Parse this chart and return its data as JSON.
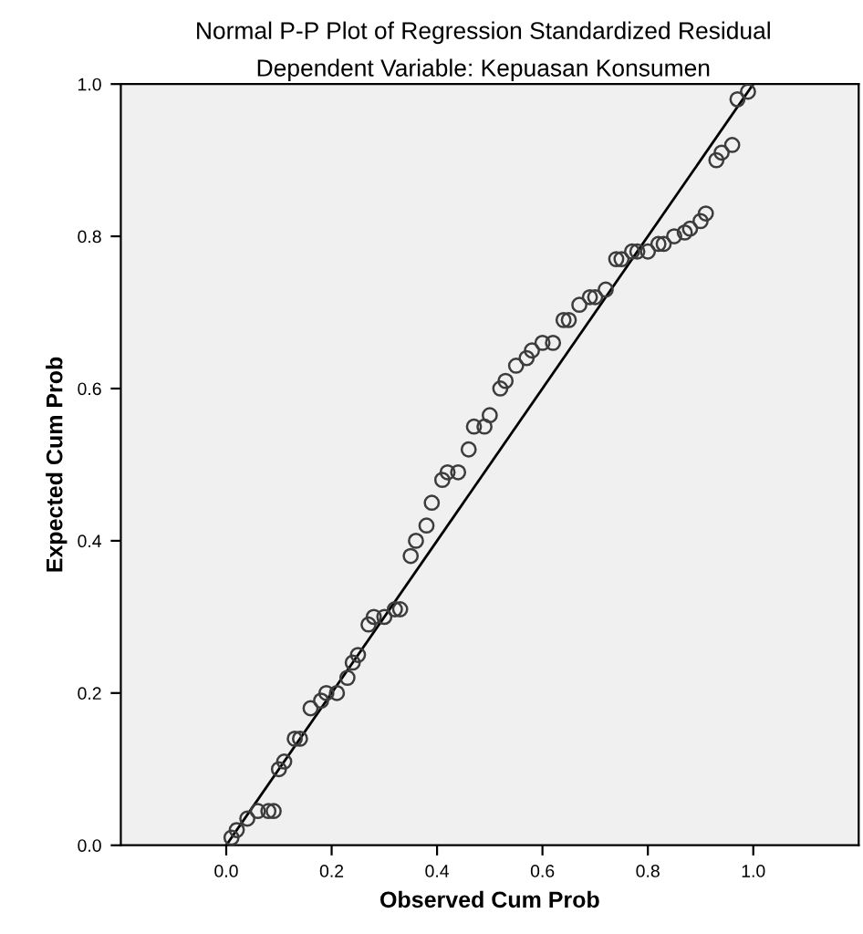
{
  "chart_data": {
    "type": "scatter",
    "title": "Normal P-P Plot of Regression Standardized Residual",
    "subtitle": "Dependent Variable: Kepuasan Konsumen",
    "xlabel": "Observed Cum Prob",
    "ylabel": "Expected Cum Prob",
    "xlim": [
      -0.2,
      1.2
    ],
    "ylim": [
      0,
      1
    ],
    "xticks": [
      {
        "value": 0,
        "label": "0.0"
      },
      {
        "value": 0.2,
        "label": "0.2"
      },
      {
        "value": 0.4,
        "label": "0.4"
      },
      {
        "value": 0.6,
        "label": "0.6"
      },
      {
        "value": 0.8,
        "label": "0.8"
      },
      {
        "value": 1,
        "label": "1.0"
      }
    ],
    "yticks": [
      {
        "value": 0,
        "label": "0.0"
      },
      {
        "value": 0.2,
        "label": "0.2"
      },
      {
        "value": 0.4,
        "label": "0.4"
      },
      {
        "value": 0.6,
        "label": "0.6"
      },
      {
        "value": 0.8,
        "label": "0.8"
      },
      {
        "value": 1,
        "label": "1.0"
      }
    ],
    "grid": false,
    "legend": false,
    "series": [
      {
        "marker": "circle",
        "color": "#3c3c3c",
        "x": [
          0.01,
          0.02,
          0.04,
          0.06,
          0.08,
          0.09,
          0.1,
          0.11,
          0.13,
          0.14,
          0.16,
          0.18,
          0.19,
          0.21,
          0.23,
          0.24,
          0.25,
          0.27,
          0.28,
          0.3,
          0.32,
          0.33,
          0.35,
          0.36,
          0.38,
          0.39,
          0.41,
          0.42,
          0.44,
          0.46,
          0.47,
          0.49,
          0.5,
          0.52,
          0.53,
          0.55,
          0.57,
          0.58,
          0.6,
          0.62,
          0.64,
          0.65,
          0.67,
          0.69,
          0.7,
          0.72,
          0.74,
          0.75,
          0.77,
          0.78,
          0.8,
          0.82,
          0.83,
          0.85,
          0.87,
          0.88,
          0.9,
          0.91,
          0.93,
          0.94,
          0.96,
          0.97,
          0.99
        ],
        "values": [
          0.01,
          0.02,
          0.035,
          0.045,
          0.045,
          0.045,
          0.1,
          0.11,
          0.14,
          0.14,
          0.18,
          0.19,
          0.2,
          0.2,
          0.22,
          0.24,
          0.25,
          0.29,
          0.3,
          0.3,
          0.31,
          0.31,
          0.38,
          0.4,
          0.42,
          0.45,
          0.48,
          0.49,
          0.49,
          0.52,
          0.55,
          0.55,
          0.565,
          0.6,
          0.61,
          0.63,
          0.64,
          0.65,
          0.66,
          0.66,
          0.69,
          0.69,
          0.71,
          0.72,
          0.72,
          0.73,
          0.77,
          0.77,
          0.78,
          0.78,
          0.78,
          0.79,
          0.79,
          0.8,
          0.805,
          0.81,
          0.82,
          0.83,
          0.9,
          0.91,
          0.92,
          0.98,
          0.99
        ]
      },
      {
        "type": "line",
        "marker": "none",
        "color": "#000000",
        "x": [
          0,
          1
        ],
        "values": [
          0,
          1
        ]
      }
    ]
  }
}
